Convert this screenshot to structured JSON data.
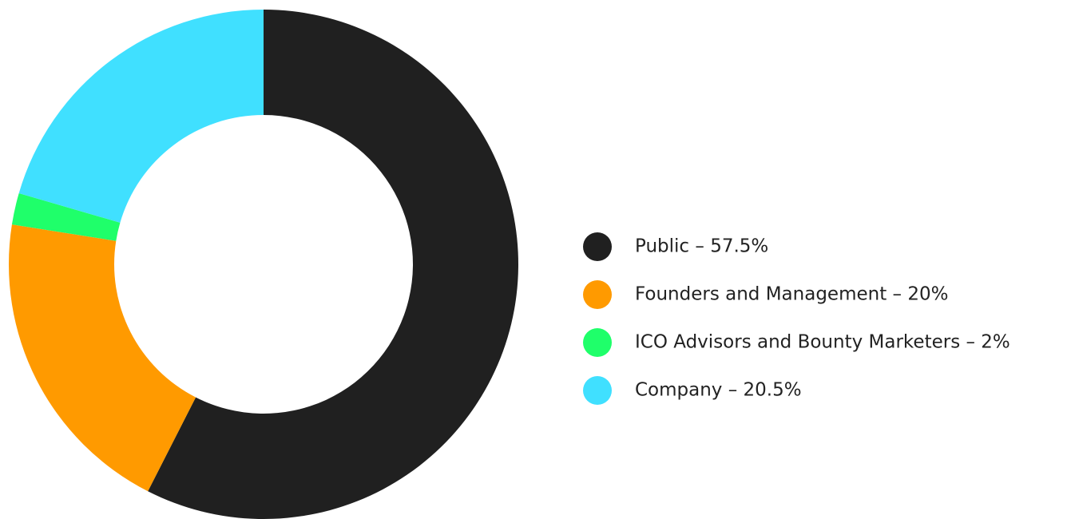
{
  "chart_data": {
    "type": "donut",
    "categories": [
      "Public – 57.5%",
      "Founders and Management – 20%",
      "ICO Advisors and Bounty Marketers – 2%",
      "Company – 20.5%"
    ],
    "values": [
      57.5,
      20,
      2,
      20.5
    ],
    "colors": [
      "#202020",
      "#ff9a00",
      "#1fff6a",
      "#40e0ff"
    ],
    "legend": "right"
  }
}
